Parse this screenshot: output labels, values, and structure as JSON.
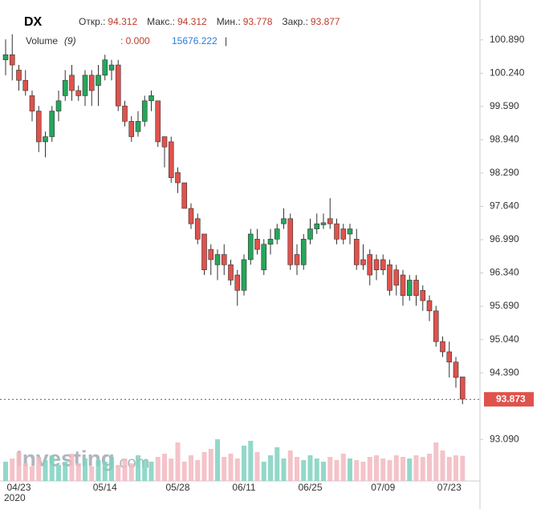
{
  "chart_data": {
    "type": "candlestick",
    "symbol": "DX",
    "header": [
      {
        "label": "Откр.:",
        "value": "94.312"
      },
      {
        "label": "Макс.:",
        "value": "94.312"
      },
      {
        "label": "Мин.:",
        "value": "93.778"
      },
      {
        "label": "Закр.:",
        "value": "93.877"
      }
    ],
    "volume_header": {
      "name": "Volume",
      "param": "(9)",
      "value": ": 0.000",
      "current": "15676.222",
      "cursor": "|"
    },
    "watermark": [
      "Investing",
      ".com"
    ],
    "categories": [
      null,
      null,
      "04/23",
      null,
      null,
      null,
      null,
      null,
      null,
      null,
      null,
      null,
      null,
      null,
      null,
      "05/14",
      null,
      null,
      null,
      null,
      null,
      null,
      null,
      null,
      null,
      null,
      "05/28",
      null,
      null,
      null,
      null,
      null,
      null,
      null,
      null,
      null,
      "06/11",
      null,
      null,
      null,
      null,
      null,
      null,
      null,
      null,
      null,
      "06/25",
      null,
      null,
      null,
      null,
      null,
      null,
      null,
      null,
      null,
      null,
      "07/09",
      null,
      null,
      null,
      null,
      null,
      null,
      null,
      null,
      null,
      "07/23",
      null,
      null
    ],
    "year_label": "2020",
    "open": [
      100.5,
      100.6,
      100.3,
      100.1,
      99.8,
      99.5,
      98.9,
      99.0,
      99.5,
      99.8,
      100.2,
      99.9,
      99.8,
      100.2,
      100.0,
      100.2,
      100.3,
      100.4,
      99.6,
      99.3,
      99.1,
      99.3,
      99.7,
      99.7,
      99.0,
      98.9,
      98.3,
      98.1,
      97.6,
      97.4,
      97.1,
      96.8,
      96.5,
      96.7,
      96.5,
      96.3,
      96.0,
      96.6,
      97.0,
      96.4,
      96.9,
      97.0,
      97.3,
      97.4,
      96.7,
      96.5,
      97.0,
      97.2,
      97.28,
      97.4,
      97.3,
      97.2,
      97.1,
      97.0,
      96.6,
      96.7,
      96.6,
      96.6,
      96.5,
      96.4,
      96.3,
      95.9,
      96.2,
      96.0,
      95.8,
      95.6,
      95.0,
      94.8,
      94.6,
      94.312
    ],
    "high": [
      100.9,
      101.0,
      100.4,
      100.3,
      99.9,
      99.6,
      99.1,
      99.6,
      99.9,
      100.3,
      100.4,
      100.0,
      100.3,
      100.3,
      100.4,
      100.6,
      100.5,
      100.5,
      99.7,
      99.4,
      99.5,
      99.8,
      99.9,
      99.7,
      99.0,
      99.0,
      98.4,
      98.1,
      97.7,
      97.5,
      97.1,
      96.9,
      96.8,
      96.9,
      96.6,
      96.4,
      96.7,
      97.2,
      97.2,
      97.0,
      97.2,
      97.3,
      97.6,
      97.5,
      96.9,
      97.1,
      97.4,
      97.5,
      97.5,
      97.8,
      97.4,
      97.3,
      97.3,
      97.2,
      96.9,
      96.8,
      96.7,
      96.7,
      96.6,
      96.5,
      96.4,
      96.3,
      96.3,
      96.1,
      95.9,
      95.7,
      95.1,
      95.0,
      94.7,
      94.312
    ],
    "low": [
      100.2,
      100.1,
      99.9,
      99.8,
      99.3,
      98.7,
      98.6,
      98.9,
      99.3,
      99.7,
      99.7,
      99.7,
      99.6,
      99.6,
      99.6,
      100.1,
      100.1,
      99.5,
      99.2,
      98.9,
      99.0,
      99.2,
      99.5,
      98.8,
      98.4,
      98.1,
      97.9,
      97.6,
      97.2,
      96.9,
      96.3,
      96.3,
      96.2,
      96.3,
      96.1,
      95.7,
      95.9,
      96.5,
      96.7,
      96.3,
      96.7,
      96.9,
      97.2,
      96.4,
      96.3,
      96.4,
      96.9,
      97.1,
      97.2,
      97.2,
      96.9,
      96.9,
      96.9,
      96.4,
      96.4,
      96.1,
      96.2,
      96.3,
      95.9,
      95.9,
      95.7,
      95.8,
      95.7,
      95.6,
      95.4,
      94.9,
      94.7,
      94.3,
      94.1,
      93.778
    ],
    "close": [
      100.6,
      100.4,
      100.1,
      99.9,
      99.5,
      98.9,
      99.0,
      99.5,
      99.7,
      100.1,
      99.9,
      99.8,
      100.2,
      99.9,
      100.2,
      100.5,
      100.4,
      99.6,
      99.3,
      99.0,
      99.3,
      99.7,
      99.8,
      98.9,
      98.8,
      98.2,
      98.1,
      97.6,
      97.3,
      97.0,
      96.4,
      96.6,
      96.7,
      96.5,
      96.2,
      96.0,
      96.6,
      97.1,
      96.8,
      96.9,
      97.0,
      97.2,
      97.4,
      96.5,
      96.5,
      97.0,
      97.2,
      97.3,
      97.32,
      97.3,
      97.0,
      97.0,
      97.2,
      96.5,
      96.5,
      96.3,
      96.4,
      96.4,
      96.0,
      96.1,
      95.9,
      96.2,
      95.9,
      95.8,
      95.6,
      95.0,
      94.8,
      94.6,
      94.3,
      93.877
    ],
    "volume": [
      12000,
      14000,
      18000,
      11000,
      9000,
      15000,
      13000,
      16000,
      10000,
      12000,
      17000,
      11000,
      14000,
      9000,
      13000,
      12000,
      15000,
      10000,
      14000,
      11000,
      16000,
      13000,
      12000,
      15000,
      17000,
      14000,
      24000,
      12000,
      16000,
      13000,
      18000,
      20000,
      26000,
      15000,
      17000,
      14000,
      22000,
      25000,
      18000,
      12000,
      16000,
      21000,
      14000,
      19000,
      15000,
      13000,
      16000,
      14000,
      12000,
      15000,
      13000,
      17000,
      14000,
      13000,
      12000,
      15000,
      16000,
      14000,
      13000,
      16000,
      15000,
      14000,
      16000,
      15000,
      17000,
      24000,
      19000,
      15000,
      16000,
      15676.222
    ],
    "up_color": "#26a65b",
    "down_color": "#e0524c",
    "ylim": [
      92.28,
      101.59
    ],
    "yticks": [
      {
        "value": 100.89,
        "label": "100.890"
      },
      {
        "value": 100.24,
        "label": "100.240"
      },
      {
        "value": 99.59,
        "label": "99.590"
      },
      {
        "value": 98.94,
        "label": "98.940"
      },
      {
        "value": 98.29,
        "label": "98.290"
      },
      {
        "value": 97.64,
        "label": "97.640"
      },
      {
        "value": 96.99,
        "label": "96.990"
      },
      {
        "value": 96.34,
        "label": "96.340"
      },
      {
        "value": 95.69,
        "label": "95.690"
      },
      {
        "value": 95.04,
        "label": "95.040"
      },
      {
        "value": 94.39,
        "label": "94.390"
      },
      {
        "value": 93.09,
        "label": "93.090"
      }
    ],
    "last_price": 93.873,
    "volume_ylim": [
      0,
      30000
    ]
  }
}
